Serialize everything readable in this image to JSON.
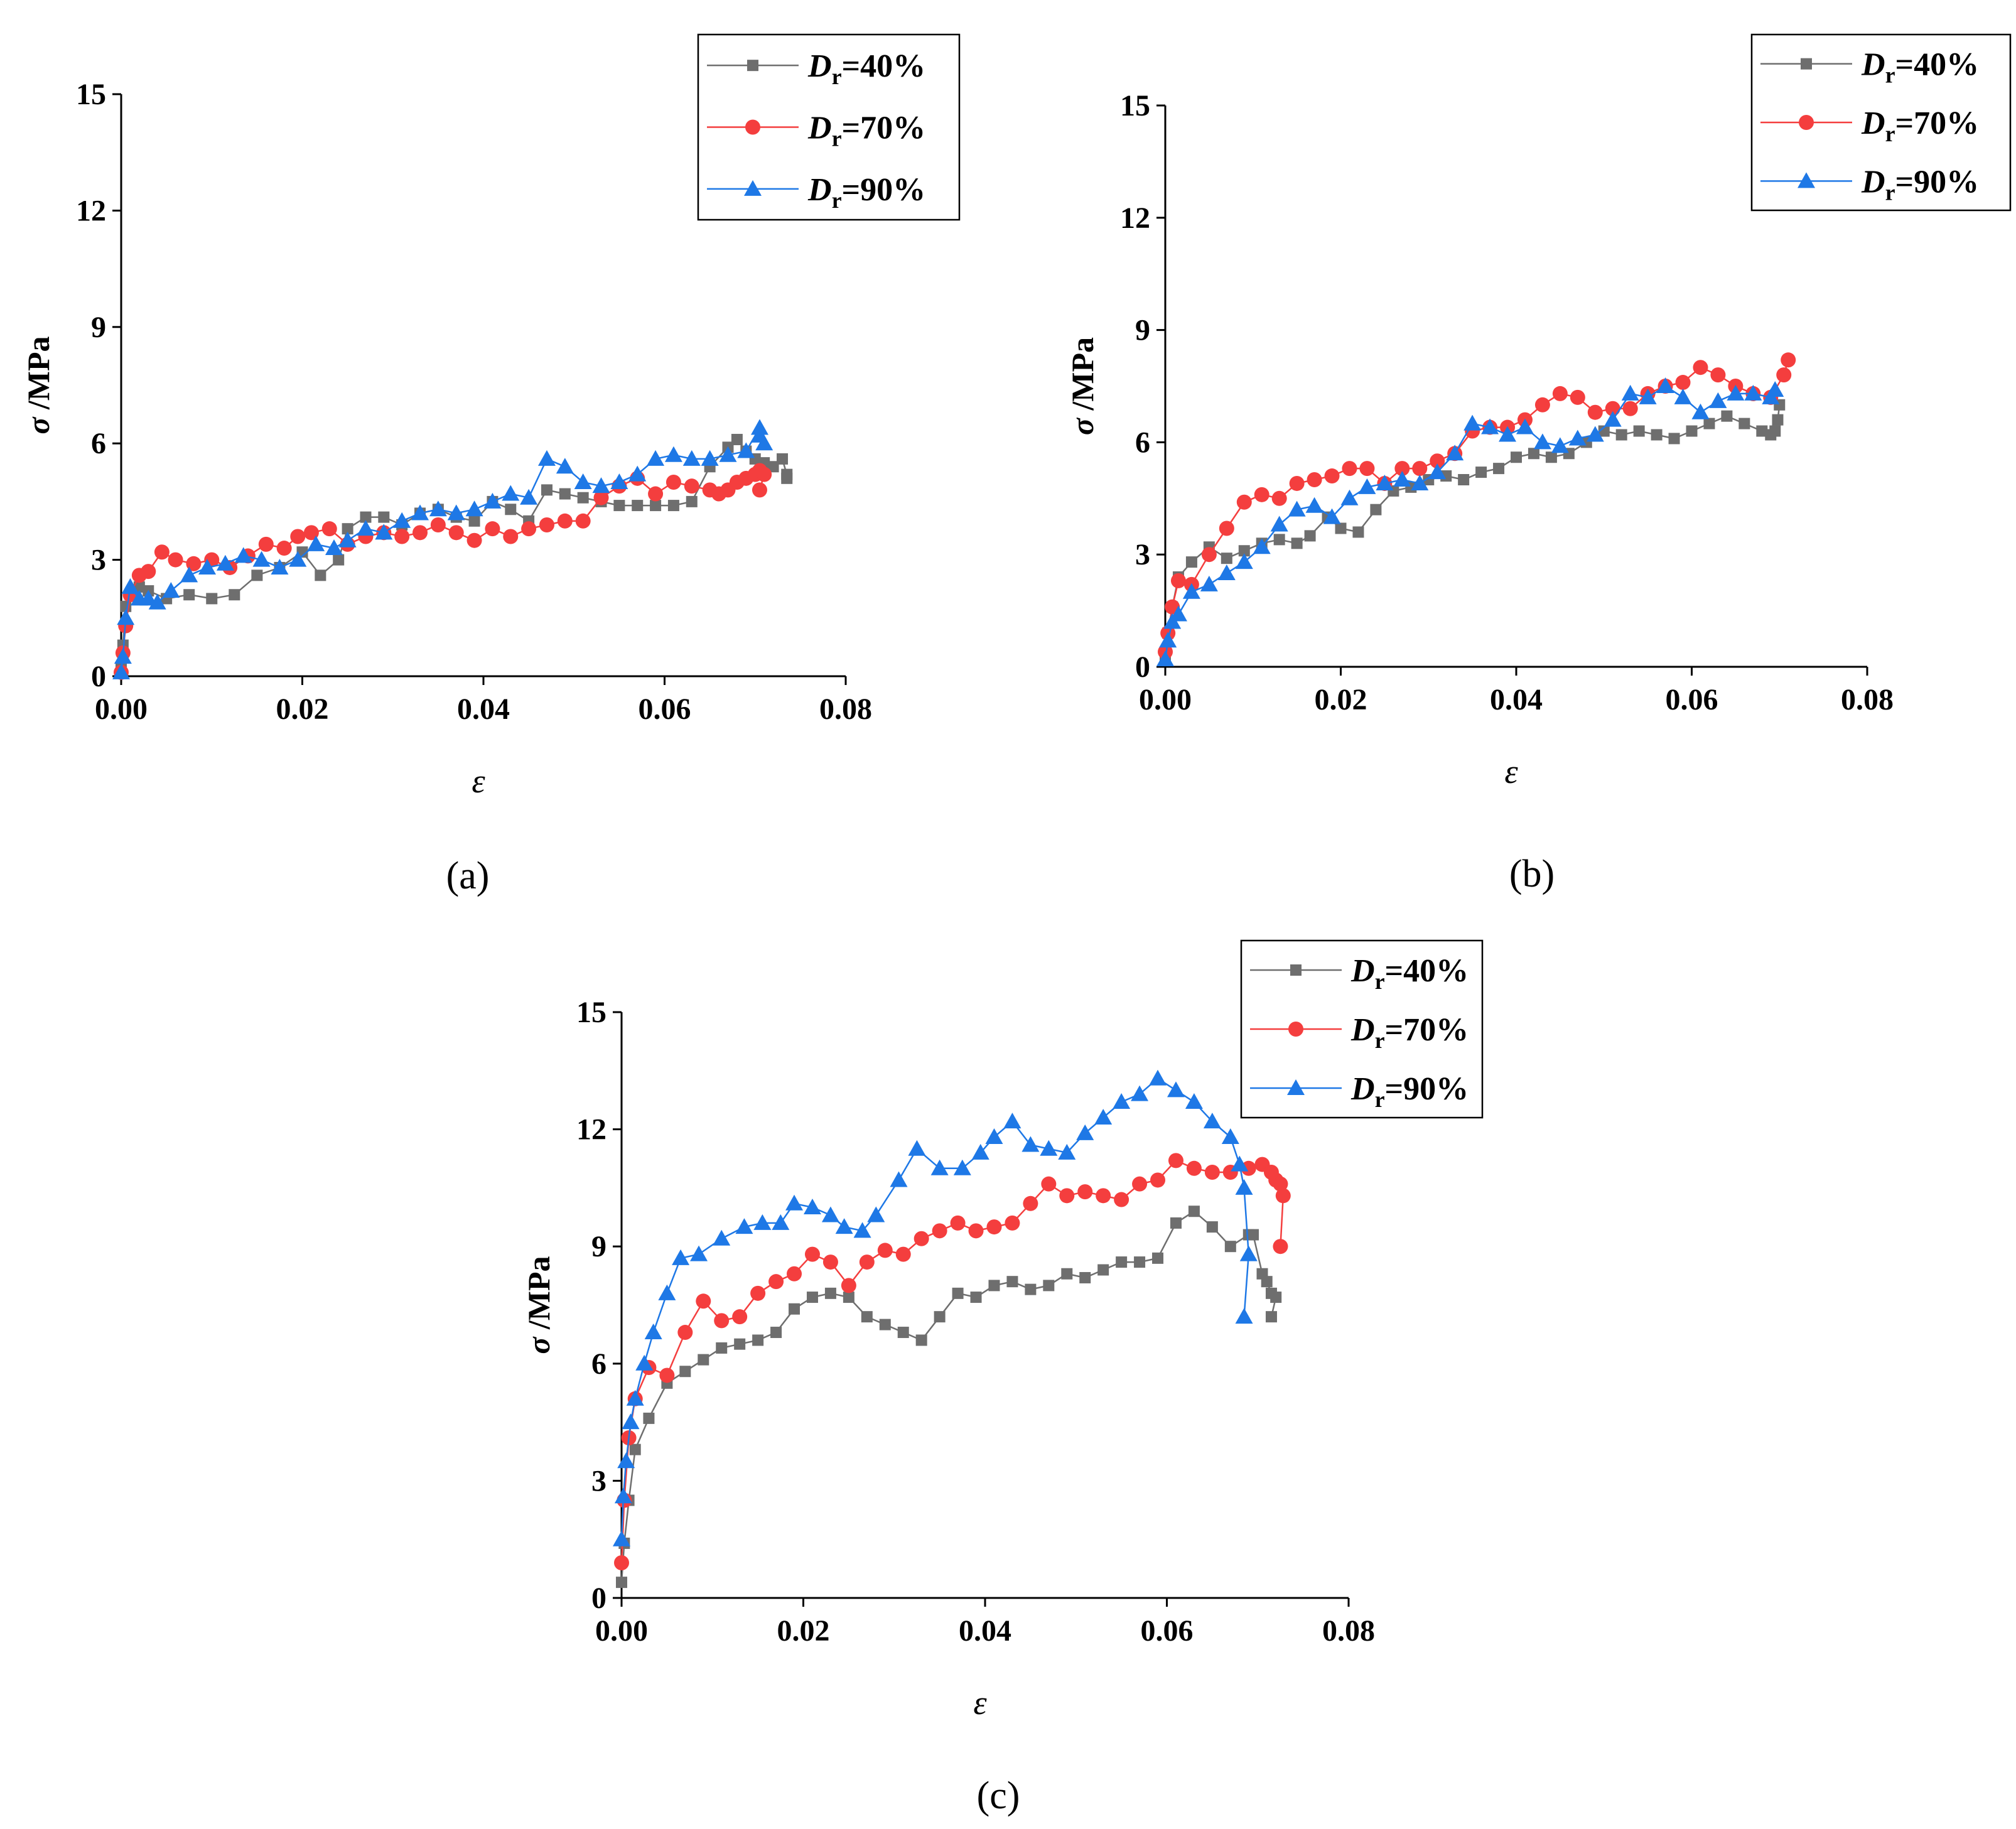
{
  "chart_data": [
    {
      "type": "line",
      "caption": "(a)",
      "xlabel": "ε",
      "ylabel_symbol": "σ",
      "ylabel_unit": "/MPa",
      "xlim": [
        0,
        0.08
      ],
      "ylim": [
        0,
        15
      ],
      "xticks": [
        "0.00",
        "0.02",
        "0.04",
        "0.06",
        "0.08"
      ],
      "yticks": [
        "0",
        "3",
        "6",
        "9",
        "12",
        "15"
      ],
      "legend": {
        "placement": "top-right",
        "var": "D",
        "sub": "r"
      },
      "series": [
        {
          "name": "=40%",
          "color": "#6e6e6e",
          "marker": "square",
          "x": [
            0.0,
            0.0002,
            0.0005,
            0.001,
            0.002,
            0.003,
            0.005,
            0.0075,
            0.01,
            0.0125,
            0.015,
            0.0175,
            0.02,
            0.022,
            0.024,
            0.025,
            0.027,
            0.029,
            0.031,
            0.033,
            0.035,
            0.037,
            0.039,
            0.041,
            0.043,
            0.045,
            0.047,
            0.049,
            0.051,
            0.053,
            0.055,
            0.057,
            0.059,
            0.061,
            0.063,
            0.065,
            0.067,
            0.068,
            0.069,
            0.07,
            0.071,
            0.072,
            0.073,
            0.0735,
            0.0735
          ],
          "y": [
            0.2,
            0.8,
            1.8,
            2.1,
            2.3,
            2.2,
            2.0,
            2.1,
            2.0,
            2.1,
            2.6,
            2.8,
            3.2,
            2.6,
            3.0,
            3.8,
            4.1,
            4.1,
            3.9,
            4.2,
            4.3,
            4.1,
            4.0,
            4.5,
            4.3,
            4.0,
            4.8,
            4.7,
            4.6,
            4.5,
            4.4,
            4.4,
            4.4,
            4.4,
            4.5,
            5.4,
            5.9,
            6.1,
            5.8,
            5.6,
            5.5,
            5.4,
            5.6,
            5.2,
            5.1
          ]
        },
        {
          "name": "=70%",
          "color": "#f43e3e",
          "marker": "circle",
          "x": [
            0.0,
            0.0002,
            0.0005,
            0.001,
            0.002,
            0.003,
            0.0045,
            0.006,
            0.008,
            0.01,
            0.012,
            0.014,
            0.016,
            0.018,
            0.0195,
            0.021,
            0.023,
            0.025,
            0.027,
            0.029,
            0.031,
            0.033,
            0.035,
            0.037,
            0.039,
            0.041,
            0.043,
            0.045,
            0.047,
            0.049,
            0.051,
            0.053,
            0.055,
            0.057,
            0.059,
            0.061,
            0.063,
            0.065,
            0.066,
            0.067,
            0.068,
            0.069,
            0.07,
            0.0705,
            0.071,
            0.0705
          ],
          "y": [
            0.1,
            0.6,
            1.3,
            2.1,
            2.6,
            2.7,
            3.2,
            3.0,
            2.9,
            3.0,
            2.8,
            3.1,
            3.4,
            3.3,
            3.6,
            3.7,
            3.8,
            3.4,
            3.6,
            3.7,
            3.6,
            3.7,
            3.9,
            3.7,
            3.5,
            3.8,
            3.6,
            3.8,
            3.9,
            4.0,
            4.0,
            4.6,
            4.9,
            5.1,
            4.7,
            5.0,
            4.9,
            4.8,
            4.7,
            4.8,
            5.0,
            5.1,
            5.2,
            5.3,
            5.2,
            4.8
          ]
        },
        {
          "name": "=90%",
          "color": "#1e78e6",
          "marker": "triangle",
          "x": [
            0.0,
            0.0002,
            0.0005,
            0.001,
            0.002,
            0.003,
            0.004,
            0.0055,
            0.0075,
            0.0095,
            0.0115,
            0.0135,
            0.0155,
            0.0175,
            0.0195,
            0.0215,
            0.0235,
            0.025,
            0.027,
            0.029,
            0.031,
            0.033,
            0.035,
            0.037,
            0.039,
            0.041,
            0.043,
            0.045,
            0.047,
            0.049,
            0.051,
            0.053,
            0.055,
            0.057,
            0.059,
            0.061,
            0.063,
            0.065,
            0.067,
            0.069,
            0.0705,
            0.0705,
            0.071
          ],
          "y": [
            0.1,
            0.5,
            1.5,
            2.3,
            2.0,
            2.0,
            1.9,
            2.2,
            2.6,
            2.8,
            2.9,
            3.1,
            3.0,
            2.8,
            3.0,
            3.4,
            3.3,
            3.5,
            3.8,
            3.7,
            4.0,
            4.2,
            4.3,
            4.2,
            4.3,
            4.5,
            4.7,
            4.6,
            5.6,
            5.4,
            5.0,
            4.9,
            5.0,
            5.2,
            5.6,
            5.7,
            5.6,
            5.6,
            5.7,
            5.8,
            6.4,
            6.2,
            6.0
          ]
        }
      ]
    },
    {
      "type": "line",
      "caption": "(b)",
      "xlabel": "ε",
      "ylabel_symbol": "σ",
      "ylabel_unit": "/MPa",
      "xlim": [
        0,
        0.08
      ],
      "ylim": [
        0,
        15
      ],
      "xticks": [
        "0.00",
        "0.02",
        "0.04",
        "0.06",
        "0.08"
      ],
      "yticks": [
        "0",
        "3",
        "6",
        "9",
        "12",
        "15"
      ],
      "legend": {
        "placement": "top-right",
        "var": "D",
        "sub": "r"
      },
      "series": [
        {
          "name": "=40%",
          "color": "#6e6e6e",
          "marker": "square",
          "x": [
            0.0,
            0.0003,
            0.0008,
            0.0015,
            0.003,
            0.005,
            0.007,
            0.009,
            0.011,
            0.013,
            0.015,
            0.0165,
            0.0185,
            0.02,
            0.022,
            0.024,
            0.026,
            0.028,
            0.03,
            0.032,
            0.034,
            0.036,
            0.038,
            0.04,
            0.042,
            0.044,
            0.046,
            0.048,
            0.05,
            0.052,
            0.054,
            0.056,
            0.058,
            0.06,
            0.062,
            0.064,
            0.066,
            0.068,
            0.069,
            0.0695,
            0.0698,
            0.07
          ],
          "y": [
            0.2,
            0.9,
            1.6,
            2.4,
            2.8,
            3.2,
            2.9,
            3.1,
            3.3,
            3.4,
            3.3,
            3.5,
            4.0,
            3.7,
            3.6,
            4.2,
            4.7,
            4.8,
            5.0,
            5.1,
            5.0,
            5.2,
            5.3,
            5.6,
            5.7,
            5.6,
            5.7,
            6.0,
            6.3,
            6.2,
            6.3,
            6.2,
            6.1,
            6.3,
            6.5,
            6.7,
            6.5,
            6.3,
            6.2,
            6.3,
            6.6,
            7.0
          ]
        },
        {
          "name": "=70%",
          "color": "#f43e3e",
          "marker": "circle",
          "x": [
            0.0,
            0.0003,
            0.0008,
            0.0015,
            0.003,
            0.005,
            0.007,
            0.009,
            0.011,
            0.013,
            0.015,
            0.017,
            0.019,
            0.021,
            0.023,
            0.025,
            0.027,
            0.029,
            0.031,
            0.033,
            0.035,
            0.037,
            0.039,
            0.041,
            0.043,
            0.045,
            0.047,
            0.049,
            0.051,
            0.053,
            0.055,
            0.057,
            0.059,
            0.061,
            0.063,
            0.065,
            0.067,
            0.069,
            0.0705,
            0.071
          ],
          "y": [
            0.4,
            0.9,
            1.6,
            2.3,
            2.2,
            3.0,
            3.7,
            4.4,
            4.6,
            4.5,
            4.9,
            5.0,
            5.1,
            5.3,
            5.3,
            4.9,
            5.3,
            5.3,
            5.5,
            5.7,
            6.3,
            6.4,
            6.4,
            6.6,
            7.0,
            7.3,
            7.2,
            6.8,
            6.9,
            6.9,
            7.3,
            7.5,
            7.6,
            8.0,
            7.8,
            7.5,
            7.3,
            7.2,
            7.8,
            8.2
          ]
        },
        {
          "name": "=90%",
          "color": "#1e78e6",
          "marker": "triangle",
          "x": [
            0.0,
            0.0003,
            0.0008,
            0.0015,
            0.003,
            0.005,
            0.007,
            0.009,
            0.011,
            0.013,
            0.015,
            0.017,
            0.019,
            0.021,
            0.023,
            0.025,
            0.027,
            0.029,
            0.031,
            0.033,
            0.035,
            0.037,
            0.039,
            0.041,
            0.043,
            0.045,
            0.047,
            0.049,
            0.051,
            0.053,
            0.055,
            0.057,
            0.059,
            0.061,
            0.063,
            0.065,
            0.067,
            0.069,
            0.0695
          ],
          "y": [
            0.2,
            0.7,
            1.2,
            1.4,
            2.0,
            2.2,
            2.5,
            2.8,
            3.2,
            3.8,
            4.2,
            4.3,
            4.0,
            4.5,
            4.8,
            4.9,
            5.0,
            4.9,
            5.2,
            5.7,
            6.5,
            6.4,
            6.2,
            6.4,
            6.0,
            5.9,
            6.1,
            6.2,
            6.6,
            7.3,
            7.2,
            7.5,
            7.2,
            6.8,
            7.1,
            7.3,
            7.3,
            7.2,
            7.4
          ]
        }
      ]
    },
    {
      "type": "line",
      "caption": "(c)",
      "xlabel": "ε",
      "ylabel_symbol": "σ",
      "ylabel_unit": "/MPa",
      "xlim": [
        0,
        0.08
      ],
      "ylim": [
        0,
        15
      ],
      "xticks": [
        "0.00",
        "0.02",
        "0.04",
        "0.06",
        "0.08"
      ],
      "yticks": [
        "0",
        "3",
        "6",
        "9",
        "12",
        "15"
      ],
      "legend": {
        "placement": "top-right",
        "var": "D",
        "sub": "r"
      },
      "series": [
        {
          "name": "=40%",
          "color": "#6e6e6e",
          "marker": "square",
          "x": [
            0.0,
            0.0003,
            0.0008,
            0.0015,
            0.003,
            0.005,
            0.007,
            0.009,
            0.011,
            0.013,
            0.015,
            0.017,
            0.019,
            0.021,
            0.023,
            0.025,
            0.027,
            0.029,
            0.031,
            0.033,
            0.035,
            0.037,
            0.039,
            0.041,
            0.043,
            0.045,
            0.047,
            0.049,
            0.051,
            0.053,
            0.055,
            0.057,
            0.059,
            0.061,
            0.063,
            0.065,
            0.067,
            0.069,
            0.0695,
            0.0705,
            0.071,
            0.0715,
            0.072,
            0.0715
          ],
          "y": [
            0.4,
            1.4,
            2.5,
            3.8,
            4.6,
            5.5,
            5.8,
            6.1,
            6.4,
            6.5,
            6.6,
            6.8,
            7.4,
            7.7,
            7.8,
            7.7,
            7.2,
            7.0,
            6.8,
            6.6,
            7.2,
            7.8,
            7.7,
            8.0,
            8.1,
            7.9,
            8.0,
            8.3,
            8.2,
            8.4,
            8.6,
            8.6,
            8.7,
            9.6,
            9.9,
            9.5,
            9.0,
            9.3,
            9.3,
            8.3,
            8.1,
            7.8,
            7.7,
            7.2
          ]
        },
        {
          "name": "=70%",
          "color": "#f43e3e",
          "marker": "circle",
          "x": [
            0.0,
            0.0003,
            0.0008,
            0.0015,
            0.003,
            0.005,
            0.007,
            0.009,
            0.011,
            0.013,
            0.015,
            0.017,
            0.019,
            0.021,
            0.023,
            0.025,
            0.027,
            0.029,
            0.031,
            0.033,
            0.035,
            0.037,
            0.039,
            0.041,
            0.043,
            0.045,
            0.047,
            0.049,
            0.051,
            0.053,
            0.055,
            0.057,
            0.059,
            0.061,
            0.063,
            0.065,
            0.067,
            0.069,
            0.0705,
            0.0715,
            0.072,
            0.0725,
            0.0728,
            0.0725
          ],
          "y": [
            0.9,
            2.5,
            4.1,
            5.1,
            5.9,
            5.7,
            6.8,
            7.6,
            7.1,
            7.2,
            7.8,
            8.1,
            8.3,
            8.8,
            8.6,
            8.0,
            8.6,
            8.9,
            8.8,
            9.2,
            9.4,
            9.6,
            9.4,
            9.5,
            9.6,
            10.1,
            10.6,
            10.3,
            10.4,
            10.3,
            10.2,
            10.6,
            10.7,
            11.2,
            11.0,
            10.9,
            10.9,
            11.0,
            11.1,
            10.9,
            10.7,
            10.6,
            10.3,
            9.0
          ]
        },
        {
          "name": "=90%",
          "color": "#1e78e6",
          "marker": "triangle",
          "x": [
            0.0,
            0.0002,
            0.0005,
            0.001,
            0.0015,
            0.0025,
            0.0035,
            0.005,
            0.0065,
            0.0085,
            0.011,
            0.0135,
            0.0155,
            0.0175,
            0.019,
            0.021,
            0.023,
            0.0245,
            0.0265,
            0.028,
            0.0305,
            0.0325,
            0.035,
            0.0375,
            0.0395,
            0.041,
            0.043,
            0.045,
            0.047,
            0.049,
            0.051,
            0.053,
            0.055,
            0.057,
            0.059,
            0.061,
            0.063,
            0.065,
            0.067,
            0.068,
            0.0685,
            0.069,
            0.0685
          ],
          "y": [
            1.5,
            2.6,
            3.5,
            4.5,
            5.1,
            6.0,
            6.8,
            7.8,
            8.7,
            8.8,
            9.2,
            9.5,
            9.6,
            9.6,
            10.1,
            10.0,
            9.8,
            9.5,
            9.4,
            9.8,
            10.7,
            11.5,
            11.0,
            11.0,
            11.4,
            11.8,
            12.2,
            11.6,
            11.5,
            11.4,
            11.9,
            12.3,
            12.7,
            12.9,
            13.3,
            13.0,
            12.7,
            12.2,
            11.8,
            11.1,
            10.5,
            8.8,
            7.2
          ]
        }
      ]
    }
  ]
}
